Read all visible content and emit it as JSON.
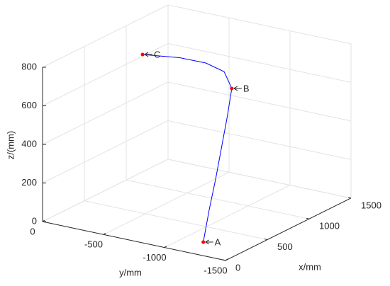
{
  "chart_data": {
    "type": "line3d",
    "xlabel": "x/mm",
    "ylabel": "y/mm",
    "zlabel": "z/(mm)",
    "xlim": [
      0,
      1500
    ],
    "ylim": [
      -1500,
      0
    ],
    "zlim": [
      0,
      800
    ],
    "xticks": [
      0,
      500,
      1000,
      1500
    ],
    "yticks": [
      0,
      -500,
      -1000,
      -1500
    ],
    "zticks": [
      0,
      200,
      400,
      600,
      800
    ],
    "grid": true,
    "series": [
      {
        "color": "#0000ff",
        "x": [
          230,
          300,
          380,
          460,
          530,
          600,
          640,
          640,
          620,
          573
        ],
        "y": [
          -1160,
          -1160,
          -1160,
          -1155,
          -1150,
          -1140,
          -1050,
          -900,
          -700,
          -427
        ],
        "z": [
          0,
          150,
          300,
          450,
          580,
          714,
          780,
          805,
          810,
          800
        ]
      }
    ],
    "points": [
      {
        "label": "A",
        "x": 230,
        "y": -1160,
        "z": 0,
        "color": "#ff0000"
      },
      {
        "label": "B",
        "x": 600,
        "y": -1140,
        "z": 714,
        "color": "#ff0000"
      },
      {
        "label": "C",
        "x": 573,
        "y": -427,
        "z": 800,
        "color": "#ff0000"
      }
    ]
  }
}
